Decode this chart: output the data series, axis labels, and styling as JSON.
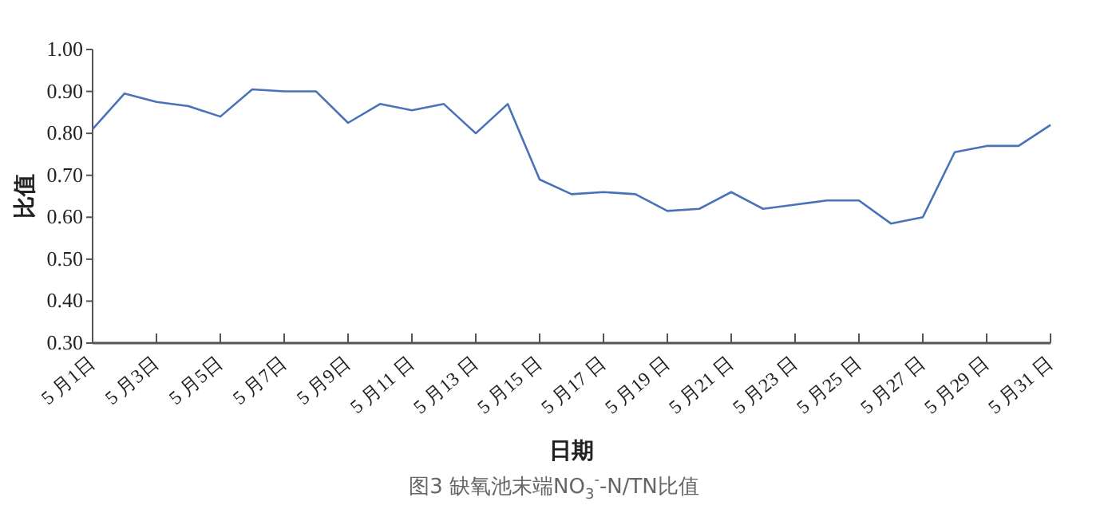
{
  "chart_data": {
    "type": "line",
    "title": "图3 缺氧池末端NO$_{3}$$^{-}$-N/TN比值",
    "xlabel": "日期",
    "ylabel": "比值",
    "categories": [
      "5 月1日",
      null,
      "5 月3日",
      null,
      "5 月5日",
      null,
      "5 月7日",
      null,
      "5 月9日",
      null,
      "5 月11 日",
      null,
      "5 月13 日",
      null,
      "5 月15 日",
      null,
      "5 月17 日",
      null,
      "5 月19 日",
      null,
      "5 月21 日",
      null,
      "5 月23 日",
      null,
      "5 月25 日",
      null,
      "5 月27 日",
      null,
      "5 月29 日",
      null,
      "5 月31 日"
    ],
    "series": [
      {
        "color": "#4a72b8",
        "values": [
          0.81,
          0.895,
          0.875,
          0.865,
          0.84,
          0.905,
          0.9,
          0.9,
          0.825,
          0.87,
          0.855,
          0.87,
          0.8,
          0.87,
          0.69,
          0.655,
          0.66,
          0.655,
          0.615,
          0.62,
          0.66,
          0.62,
          0.63,
          0.64,
          0.64,
          0.585,
          0.6,
          0.755,
          0.77,
          0.77,
          0.82
        ]
      }
    ],
    "ylim": [
      0.3,
      1.0
    ],
    "yticks": [
      {
        "value": 0.3,
        "label": "0.30"
      },
      {
        "value": 0.4,
        "label": "0.40"
      },
      {
        "value": 0.5,
        "label": "0.50"
      },
      {
        "value": 0.6,
        "label": "0.60"
      },
      {
        "value": 0.7,
        "label": "0.70"
      },
      {
        "value": 0.8,
        "label": "0.80"
      },
      {
        "value": 0.9,
        "label": "0.90"
      },
      {
        "value": 1.0,
        "label": "1.00"
      }
    ],
    "grid": false,
    "marker": "none",
    "line_style": "solid"
  }
}
